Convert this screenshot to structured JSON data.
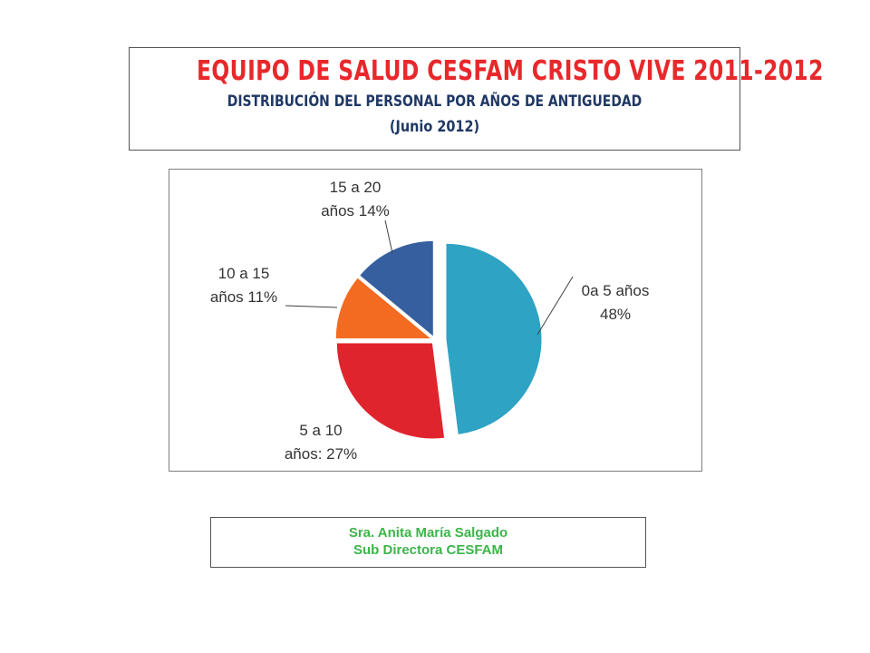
{
  "colors": {
    "title": "#e8282b",
    "subtitle": "#1f3864",
    "footer": "#3cb54a"
  },
  "header": {
    "title": "EQUIPO DE SALUD CESFAM CRISTO VIVE 2011-2012",
    "subtitle": "DISTRIBUCIÓN DEL PERSONAL POR AÑOS DE ANTIGUEDAD",
    "date": "(Junio 2012)"
  },
  "chart_data": {
    "type": "pie",
    "title": "",
    "slices": [
      {
        "label_lines": [
          "0a 5 años",
          "48%"
        ],
        "value": 48,
        "color": "#2ea3c3",
        "exploded": true
      },
      {
        "label_lines": [
          "5 a 10",
          "años: 27%"
        ],
        "value": 27,
        "color": "#e0242d"
      },
      {
        "label_lines": [
          "10 a 15",
          "años 11%"
        ],
        "value": 11,
        "color": "#f26b21"
      },
      {
        "label_lines": [
          "15 a 20",
          "años 14%"
        ],
        "value": 14,
        "color": "#355f9e"
      }
    ]
  },
  "footer": {
    "name": "Sra. Anita María Salgado",
    "role": "Sub Directora CESFAM"
  }
}
